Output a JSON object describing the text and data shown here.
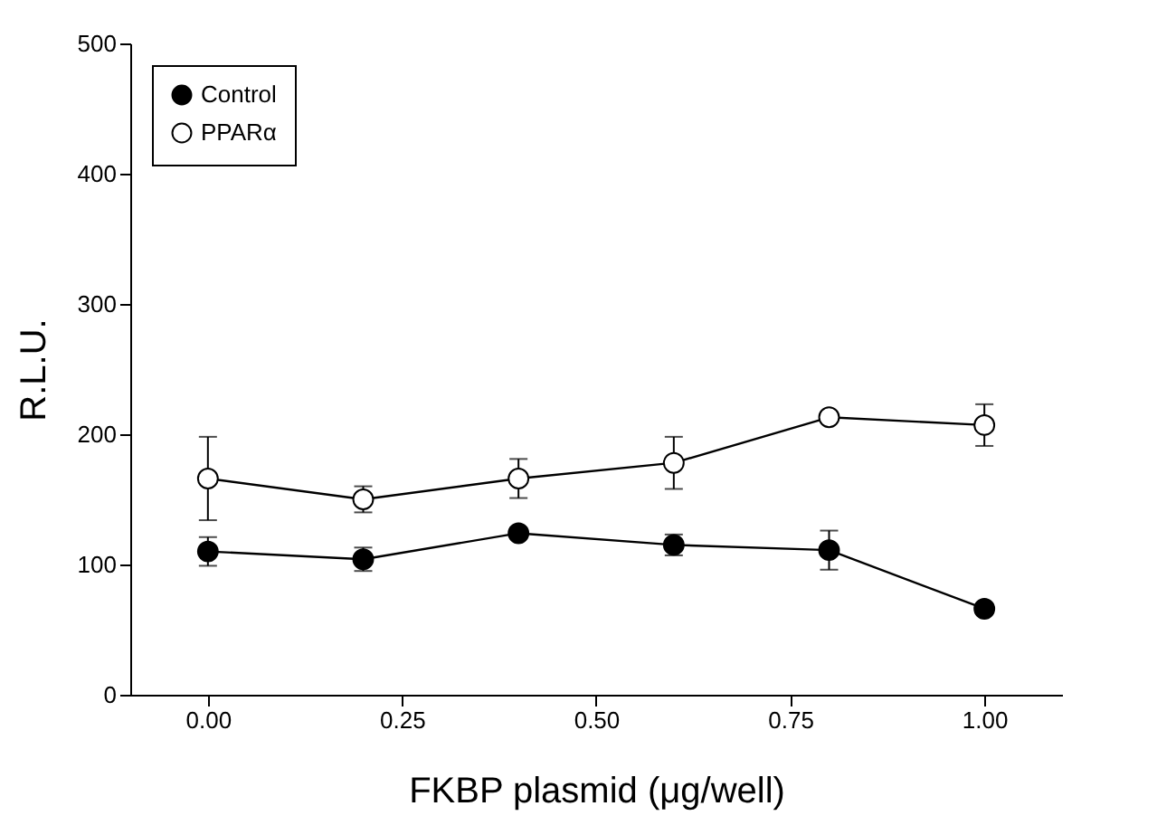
{
  "chart_data": {
    "type": "line",
    "xlabel": "FKBP plasmid (μg/well)",
    "ylabel": "R.L.U.",
    "x": [
      0,
      0.2,
      0.4,
      0.6,
      0.8,
      1.0
    ],
    "series": [
      {
        "name": "Control",
        "color": "#000000",
        "values": [
          110,
          104,
          124,
          115,
          111,
          66
        ],
        "errors": [
          11,
          9,
          4,
          8,
          15,
          null
        ]
      },
      {
        "name": "PPARα",
        "color": "#ffffff",
        "values": [
          166,
          150,
          166,
          178,
          213,
          207
        ],
        "errors": [
          32,
          10,
          15,
          20,
          null,
          16
        ]
      }
    ],
    "xlim": [
      -0.1,
      1.1
    ],
    "xticks": [
      {
        "value": 0,
        "label": "0.00"
      },
      {
        "value": 0.25,
        "label": "0.25"
      },
      {
        "value": 0.5,
        "label": "0.50"
      },
      {
        "value": 0.75,
        "label": "0.75"
      },
      {
        "value": 1,
        "label": "1.00"
      }
    ],
    "ylim": [
      0,
      500
    ],
    "yticks": [
      0,
      100,
      200,
      300,
      400,
      500
    ],
    "grid": false,
    "legend": "top left",
    "marker": "circle",
    "line_style": "solid"
  }
}
